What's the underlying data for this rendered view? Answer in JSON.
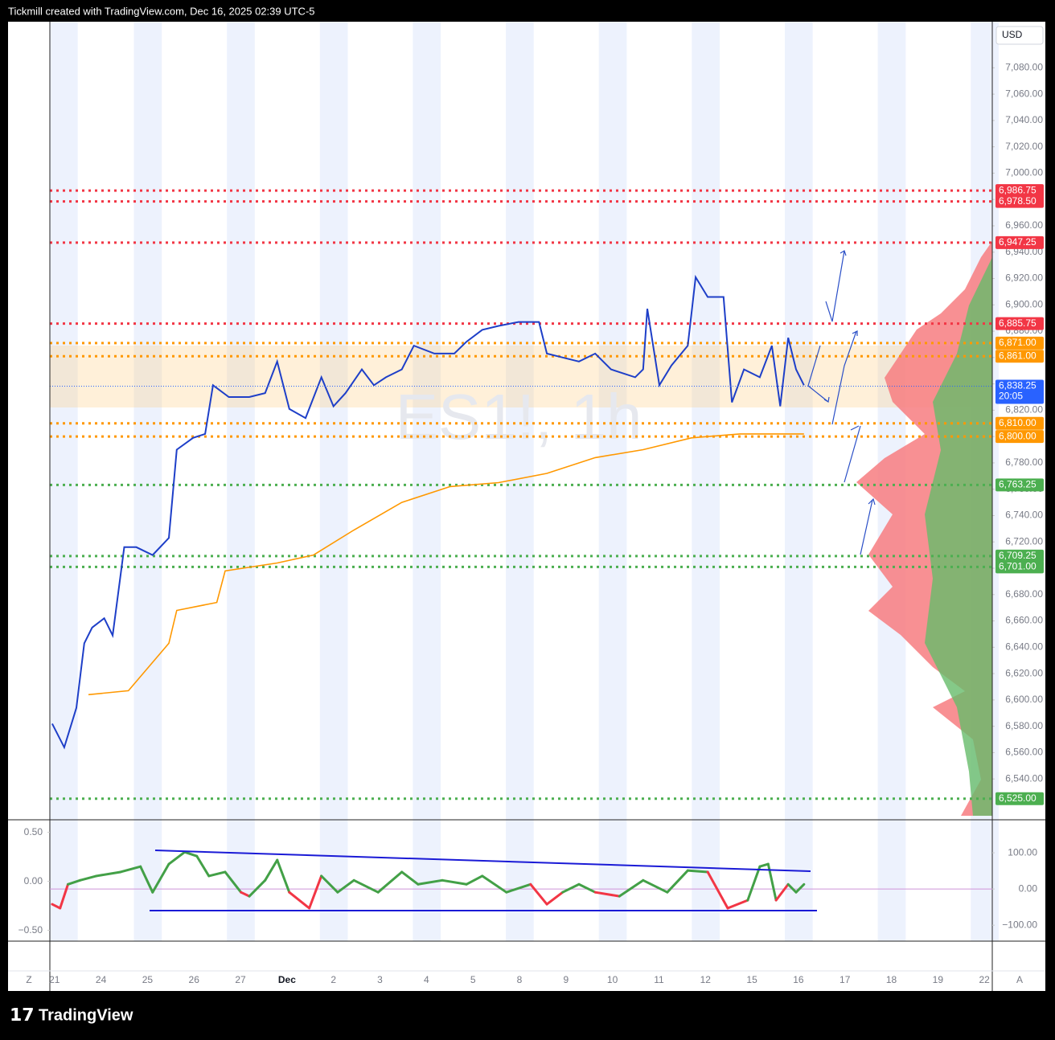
{
  "header": "Tickmill created with TradingView.com, Dec 16, 2025 02:39 UTC-5",
  "currency": "USD",
  "watermark": "ES1!, 1h",
  "logo": "TradingView",
  "scale_buttons": [
    "Z",
    "A"
  ],
  "chart_data": [
    {
      "type": "line",
      "xlim": [
        -0.1,
        20.17
      ],
      "xticks": [
        {
          "value": 0,
          "label": "21"
        },
        {
          "value": 1,
          "label": "24"
        },
        {
          "value": 2,
          "label": "25"
        },
        {
          "value": 3,
          "label": "26"
        },
        {
          "value": 4,
          "label": "27"
        },
        {
          "value": 5,
          "label": "Dec"
        },
        {
          "value": 6,
          "label": "2"
        },
        {
          "value": 7,
          "label": "3"
        },
        {
          "value": 8,
          "label": "4"
        },
        {
          "value": 9,
          "label": "5"
        },
        {
          "value": 10,
          "label": "8"
        },
        {
          "value": 11,
          "label": "9"
        },
        {
          "value": 12,
          "label": "10"
        },
        {
          "value": 13,
          "label": "11"
        },
        {
          "value": 14,
          "label": "12"
        },
        {
          "value": 15,
          "label": "15"
        },
        {
          "value": 16,
          "label": "16"
        },
        {
          "value": 17,
          "label": "17"
        },
        {
          "value": 18,
          "label": "18"
        },
        {
          "value": 19,
          "label": "19"
        },
        {
          "value": 20,
          "label": "22"
        }
      ],
      "ylim": [
        6509,
        7115
      ],
      "yticks": [
        {
          "value": 6540,
          "label": "6,540.00"
        },
        {
          "value": 6560,
          "label": "6,560.00"
        },
        {
          "value": 6580,
          "label": "6,580.00"
        },
        {
          "value": 6600,
          "label": "6,600.00"
        },
        {
          "value": 6620,
          "label": "6,620.00"
        },
        {
          "value": 6640,
          "label": "6,640.00"
        },
        {
          "value": 6660,
          "label": "6,660.00"
        },
        {
          "value": 6680,
          "label": "6,680.00"
        },
        {
          "value": 6700,
          "label": "6,700.00"
        },
        {
          "value": 6720,
          "label": "6,720.00"
        },
        {
          "value": 6740,
          "label": "6,740.00"
        },
        {
          "value": 6760,
          "label": "6,760.00"
        },
        {
          "value": 6780,
          "label": "6,780.00"
        },
        {
          "value": 6800,
          "label": "6,800.00"
        },
        {
          "value": 6820,
          "label": "6,820.00"
        },
        {
          "value": 6840,
          "label": "6,840.00"
        },
        {
          "value": 6860,
          "label": "6,860.00"
        },
        {
          "value": 6880,
          "label": "6,880.00"
        },
        {
          "value": 6900,
          "label": "6,900.00"
        },
        {
          "value": 6920,
          "label": "6,920.00"
        },
        {
          "value": 6940,
          "label": "6,940.00"
        },
        {
          "value": 6960,
          "label": "6,960.00"
        },
        {
          "value": 6980,
          "label": "6,980.00"
        },
        {
          "value": 7000,
          "label": "7,000.00"
        },
        {
          "value": 7020,
          "label": "7,020.00"
        },
        {
          "value": 7040,
          "label": "7,040.00"
        },
        {
          "value": 7060,
          "label": "7,060.00"
        },
        {
          "value": 7080,
          "label": "7,080.00"
        }
      ],
      "series": [
        {
          "color": "#1e3fc8",
          "x": [
            -0.05,
            0.21,
            0.47,
            0.64,
            0.81,
            1.07,
            1.25,
            1.5,
            1.76,
            2.11,
            2.46,
            2.63,
            2.98,
            3.24,
            3.41,
            3.75,
            4.19,
            4.53,
            4.79,
            5.05,
            5.4,
            5.74,
            6.0,
            6.26,
            6.61,
            6.87,
            7.13,
            7.47,
            7.73,
            8.17,
            8.6,
            8.86,
            9.2,
            9.55,
            9.98,
            10.42,
            10.59,
            10.93,
            11.28,
            11.63,
            11.97,
            12.49,
            12.66,
            12.75,
            13.01,
            13.27,
            13.62,
            13.79,
            14.05,
            14.39,
            14.57,
            14.83,
            15.17,
            15.43,
            15.61,
            15.78,
            15.95,
            16.12
          ],
          "values": [
            6582,
            6564,
            6594,
            6643,
            6655,
            6662,
            6649,
            6716,
            6716,
            6710,
            6723,
            6790,
            6799,
            6802,
            6839,
            6830,
            6830,
            6833,
            6857,
            6821,
            6814,
            6845,
            6823,
            6833,
            6851,
            6839,
            6845,
            6851,
            6869,
            6863,
            6863,
            6872,
            6881,
            6884,
            6887,
            6887,
            6863,
            6860,
            6857,
            6863,
            6851,
            6845,
            6851,
            6897,
            6839,
            6854,
            6869,
            6921,
            6906,
            6906,
            6826,
            6851,
            6845,
            6869,
            6823,
            6875,
            6851,
            6839
          ]
        },
        {
          "color": "#ff9800",
          "x": [
            0.73,
            1.59,
            2.46,
            2.63,
            3.49,
            3.67,
            4.79,
            5.57,
            6.44,
            7.47,
            8.51,
            9.55,
            10.59,
            11.63,
            12.66,
            13.7,
            14.74,
            16.12
          ],
          "values": [
            6604,
            6607,
            6643,
            6668,
            6674,
            6698,
            6704,
            6710,
            6729,
            6750,
            6762,
            6765,
            6772,
            6784,
            6790,
            6799,
            6802,
            6802
          ]
        }
      ],
      "levels": [
        {
          "value": 6986.75,
          "label": "6,986.75",
          "color": "#f23645"
        },
        {
          "value": 6978.5,
          "label": "6,978.50",
          "color": "#f23645"
        },
        {
          "value": 6947.25,
          "label": "6,947.25",
          "color": "#f23645"
        },
        {
          "value": 6885.75,
          "label": "6,885.75",
          "color": "#f23645"
        },
        {
          "value": 6871,
          "label": "6,871.00",
          "color": "#ff9800"
        },
        {
          "value": 6861,
          "label": "6,861.00",
          "color": "#ff9800"
        },
        {
          "value": 6810,
          "label": "6,810.00",
          "color": "#ff9800"
        },
        {
          "value": 6800,
          "label": "6,800.00",
          "color": "#ff9800"
        },
        {
          "value": 6763.25,
          "label": "6,763.25",
          "color": "#4caf50"
        },
        {
          "value": 6709.25,
          "label": "6,709.25",
          "color": "#4caf50"
        },
        {
          "value": 6701,
          "label": "6,701.00",
          "color": "#4caf50"
        },
        {
          "value": 6525,
          "label": "6,525.00",
          "color": "#4caf50"
        }
      ],
      "last_price": {
        "value": 6838.25,
        "label": "6,838.25",
        "countdown": "20:05",
        "color": "#2962ff"
      }
    },
    {
      "type": "line",
      "ylim": [
        -144,
        189
      ],
      "yticks": [
        {
          "value": 100,
          "label": "100.00"
        },
        {
          "value": 0,
          "label": "0.00"
        },
        {
          "value": -100,
          "label": "−100.00"
        }
      ],
      "y2lim": [
        -0.61,
        0.62
      ],
      "y2ticks": [
        {
          "value": 0.5,
          "label": "0.50"
        },
        {
          "value": 0,
          "label": "0.00"
        },
        {
          "value": -0.5,
          "label": "−0.50"
        }
      ],
      "positive_color": "#43a047",
      "negative_color": "#f23645",
      "series": [
        {
          "x": [
            -0.05,
            0.12,
            0.29,
            0.55,
            0.9,
            1.42,
            1.85,
            2.11,
            2.46,
            2.8,
            3.06,
            3.32,
            3.67,
            4.01,
            4.19,
            4.53,
            4.79,
            5.05,
            5.48,
            5.74,
            6.09,
            6.44,
            6.96,
            7.47,
            7.82,
            8.34,
            8.86,
            9.2,
            9.72,
            10.24,
            10.59,
            10.93,
            11.28,
            11.63,
            12.15,
            12.66,
            13.18,
            13.62,
            14.05,
            14.48,
            14.91,
            15.17,
            15.35,
            15.52,
            15.78,
            15.95,
            16.12
          ],
          "values": [
            -42,
            -53,
            13,
            24,
            36,
            47,
            62,
            -9,
            69,
            102,
            91,
            36,
            47,
            -9,
            -20,
            24,
            80,
            -9,
            -53,
            36,
            -9,
            24,
            -9,
            47,
            13,
            24,
            13,
            36,
            -9,
            13,
            -42,
            -9,
            13,
            -9,
            -20,
            24,
            -9,
            51,
            47,
            -53,
            -31,
            62,
            69,
            -31,
            13,
            -9,
            13
          ]
        }
      ]
    }
  ]
}
